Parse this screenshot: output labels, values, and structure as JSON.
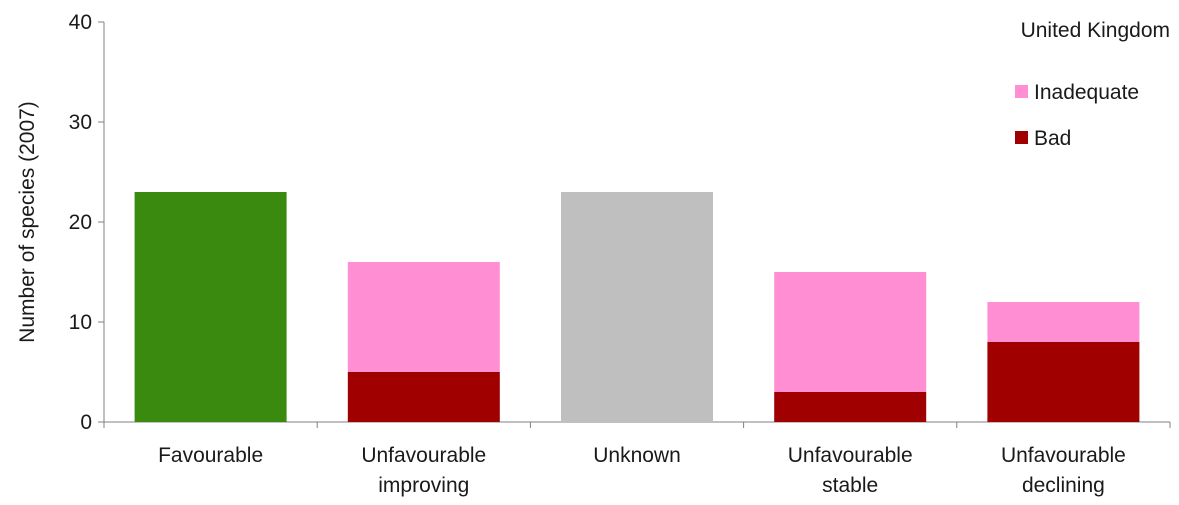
{
  "chart_data": {
    "type": "bar",
    "stacked": true,
    "title": "United Kingdom",
    "xlabel": "",
    "ylabel": "Number of species (2007)",
    "ylim": [
      0,
      40
    ],
    "yticks": [
      "0",
      "10",
      "20",
      "30",
      "40"
    ],
    "grid": false,
    "legend_position": "top-right",
    "categories": [
      [
        "Favourable"
      ],
      [
        "Unfavourable",
        "improving"
      ],
      [
        "Unknown"
      ],
      [
        "Unfavourable",
        "stable"
      ],
      [
        "Unfavourable",
        "declining"
      ]
    ],
    "bars": [
      {
        "segments": [
          {
            "value": 23,
            "color": "#3a8a10"
          }
        ]
      },
      {
        "segments": [
          {
            "value": 5,
            "color": "#a00000"
          },
          {
            "value": 11,
            "color": "#ff8fd2"
          }
        ]
      },
      {
        "segments": [
          {
            "value": 23,
            "color": "#bfbfbf"
          }
        ]
      },
      {
        "segments": [
          {
            "value": 3,
            "color": "#a00000"
          },
          {
            "value": 12,
            "color": "#ff8fd2"
          }
        ]
      },
      {
        "segments": [
          {
            "value": 8,
            "color": "#a00000"
          },
          {
            "value": 4,
            "color": "#ff8fd2"
          }
        ]
      }
    ],
    "legend": [
      {
        "label": "Inadequate",
        "color": "#ff8fd2"
      },
      {
        "label": "Bad",
        "color": "#a00000"
      }
    ]
  }
}
